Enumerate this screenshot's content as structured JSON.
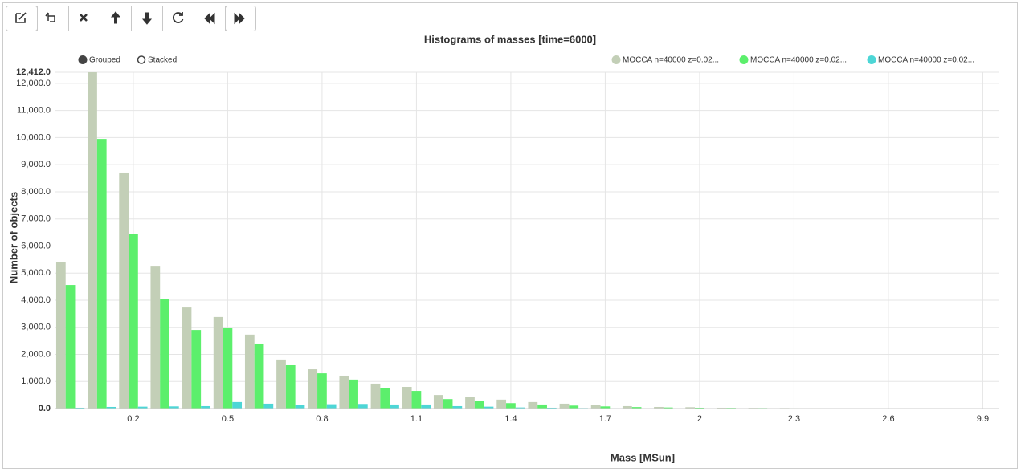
{
  "chart_data": {
    "type": "bar",
    "title": "Histograms of masses [time=6000]",
    "x_label": "Mass [MSun]",
    "y_label": "Number of objects",
    "controls": [
      "Grouped",
      "Stacked"
    ],
    "categories": [
      null,
      null,
      "0.2",
      null,
      null,
      "0.5",
      null,
      null,
      "0.8",
      null,
      null,
      "1.1",
      null,
      null,
      "1.4",
      null,
      null,
      "1.7",
      null,
      null,
      "2",
      null,
      null,
      "2.3",
      null,
      null,
      "2.6",
      null,
      null,
      "9.9"
    ],
    "series": [
      {
        "name": "MOCCA n=40000 z=0.02...",
        "color": "#c3cfb7",
        "values": [
          5400,
          12412,
          8710,
          5240,
          3730,
          3380,
          2730,
          1810,
          1450,
          1215,
          920,
          800,
          500,
          415,
          330,
          240,
          180,
          130,
          90,
          60,
          50,
          30,
          25,
          20,
          15,
          12,
          10,
          8,
          6,
          5
        ]
      },
      {
        "name": "MOCCA n=40000 z=0.02...",
        "color": "#5cef6c",
        "values": [
          4560,
          9950,
          6430,
          4030,
          2900,
          2990,
          2400,
          1600,
          1300,
          1070,
          770,
          650,
          350,
          270,
          200,
          150,
          110,
          80,
          55,
          40,
          30,
          25,
          20,
          15,
          12,
          10,
          8,
          6,
          5,
          4
        ]
      },
      {
        "name": "MOCCA n=40000 z=0.02...",
        "color": "#4dd6d6",
        "values": [
          30,
          60,
          70,
          80,
          90,
          240,
          180,
          130,
          160,
          170,
          150,
          150,
          90,
          70,
          40,
          30,
          20,
          15,
          10,
          8,
          6,
          5,
          4,
          3,
          3,
          2,
          2,
          2,
          1,
          1
        ]
      }
    ],
    "ylim": [
      0,
      12412
    ],
    "yticks": [
      {
        "value": 0,
        "label": "0.0"
      },
      {
        "value": 1000,
        "label": "1,000.0"
      },
      {
        "value": 2000,
        "label": "2,000.0"
      },
      {
        "value": 3000,
        "label": "3,000.0"
      },
      {
        "value": 4000,
        "label": "4,000.0"
      },
      {
        "value": 5000,
        "label": "5,000.0"
      },
      {
        "value": 6000,
        "label": "6,000.0"
      },
      {
        "value": 7000,
        "label": "7,000.0"
      },
      {
        "value": 8000,
        "label": "8,000.0"
      },
      {
        "value": 9000,
        "label": "9,000.0"
      },
      {
        "value": 10000,
        "label": "10,000.0"
      },
      {
        "value": 11000,
        "label": "11,000.0"
      },
      {
        "value": 12000,
        "label": "12,000.0"
      },
      {
        "value": 12412,
        "label": "12,412.0"
      }
    ],
    "grid": true
  }
}
